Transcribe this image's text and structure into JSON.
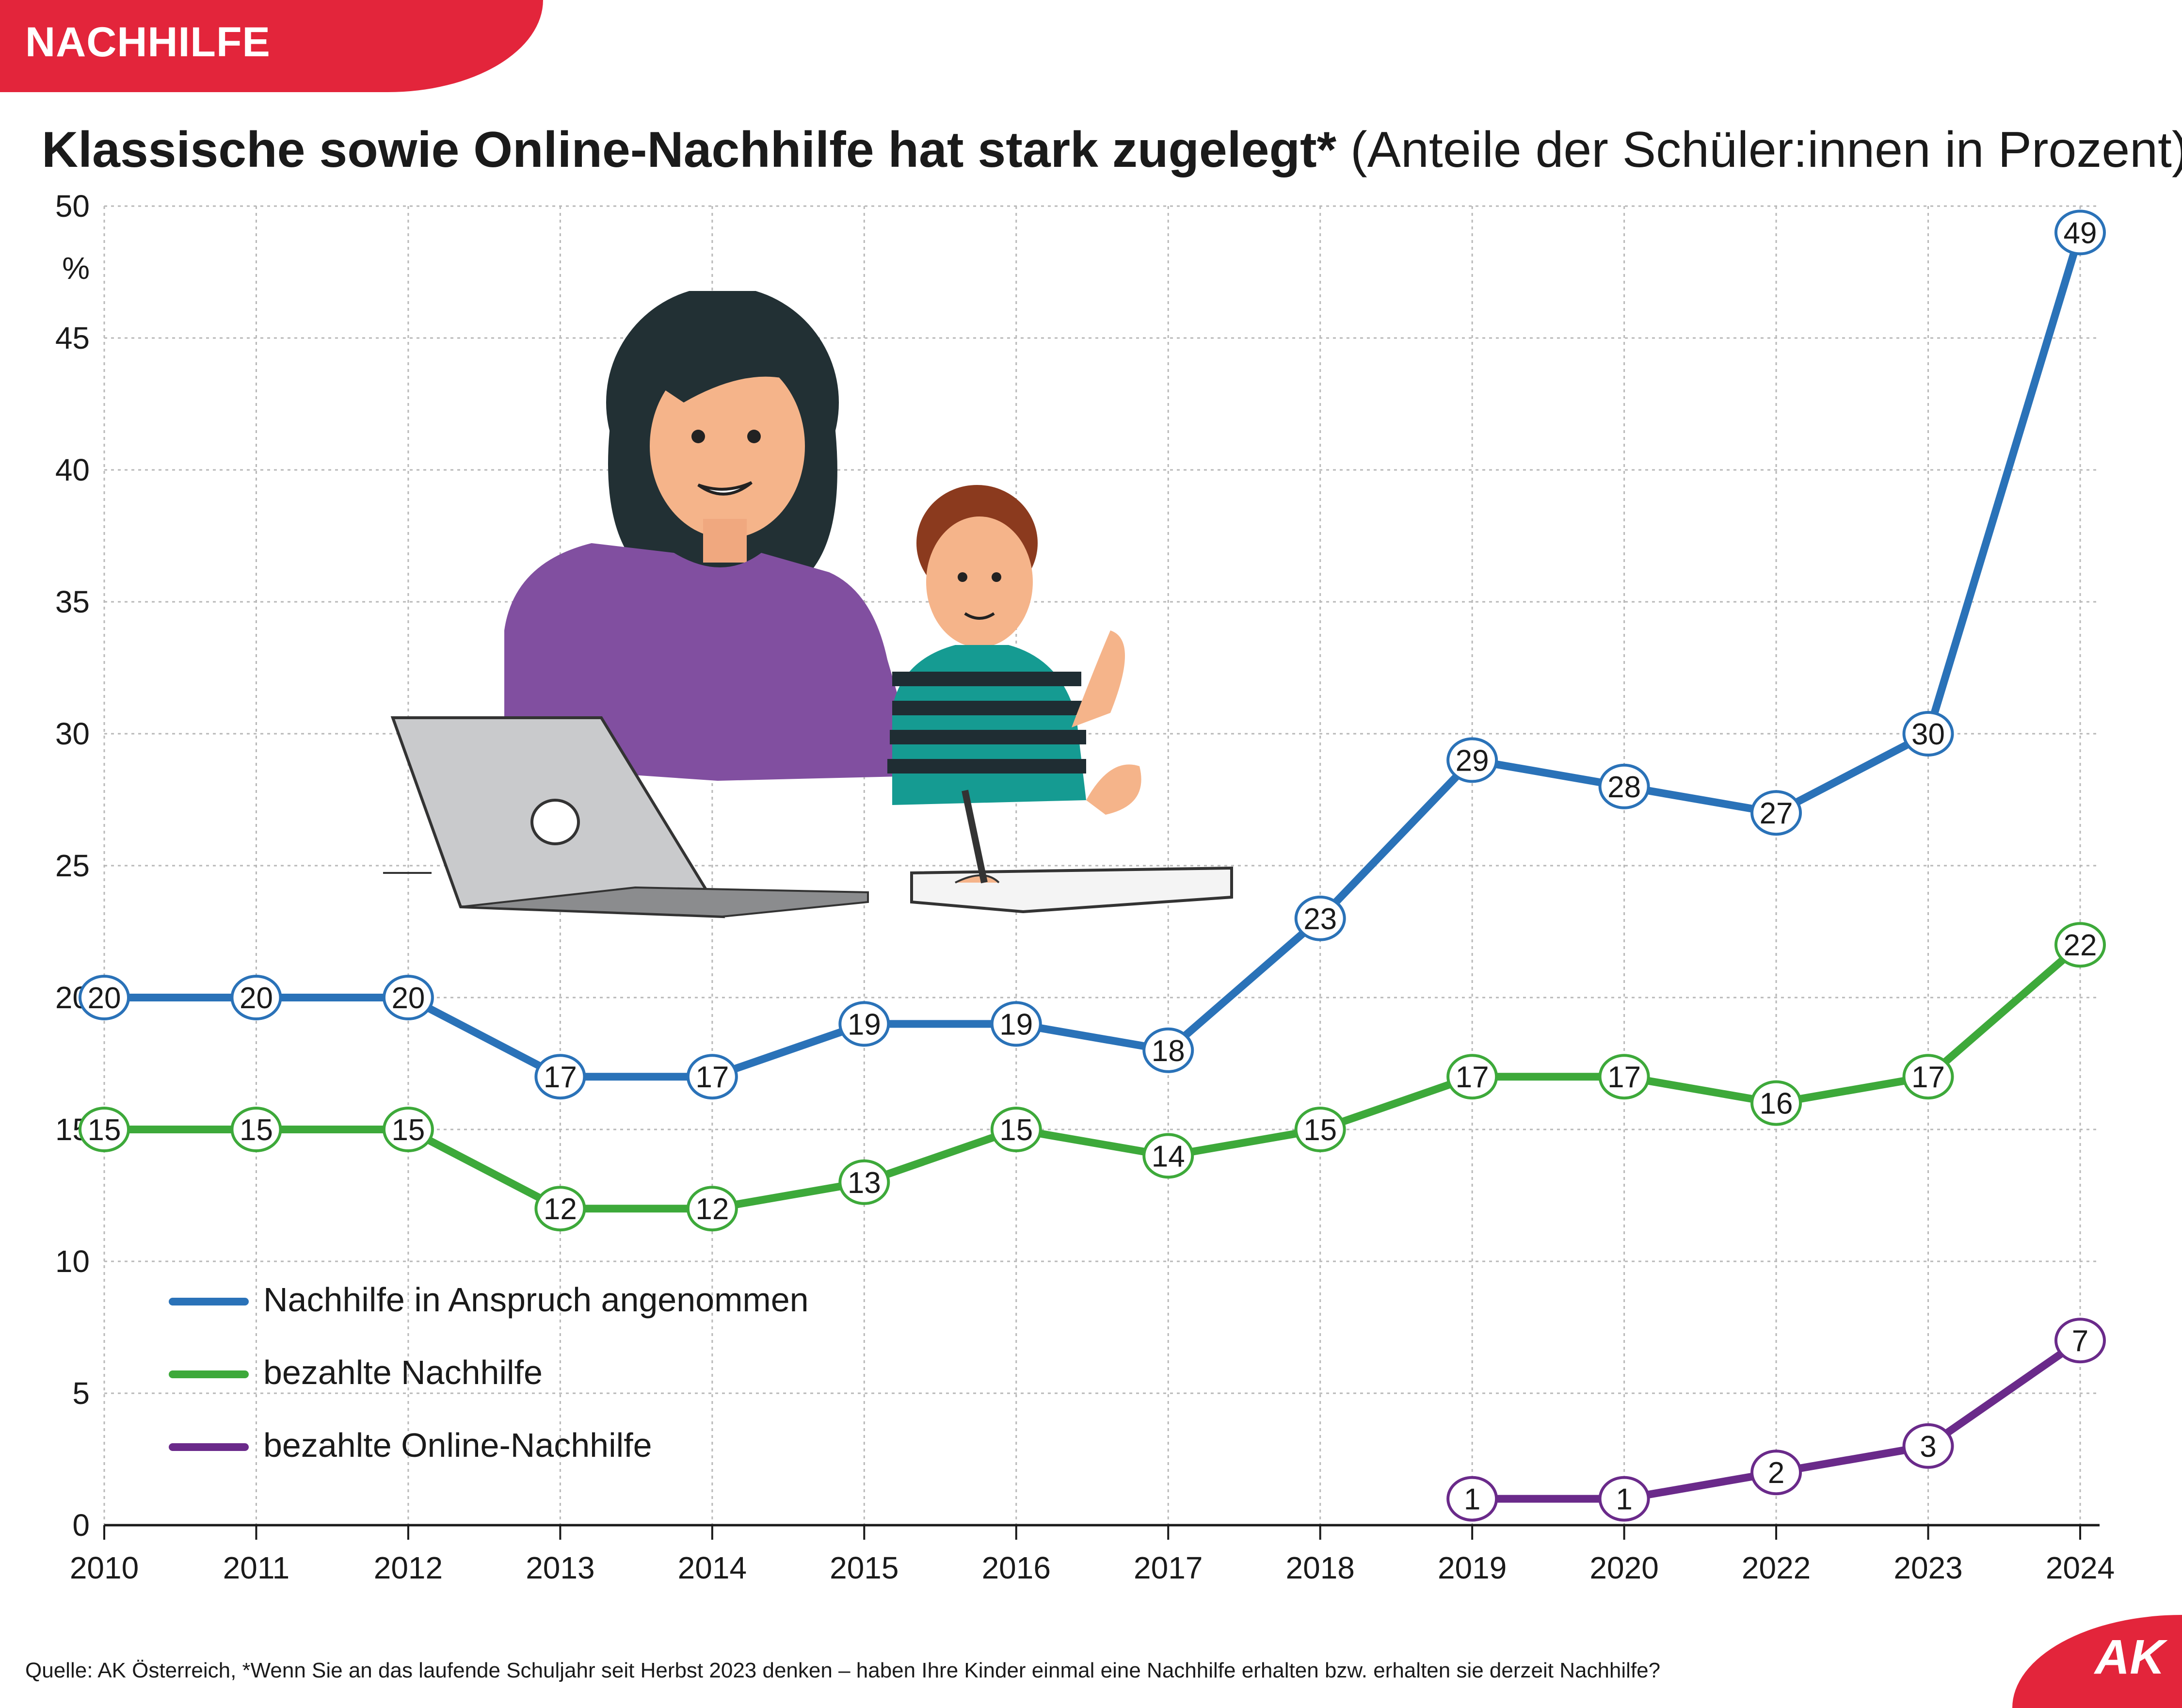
{
  "header": {
    "tag": "NACHHILFE",
    "title_main": "Klassische sowie Online-Nachhilfe hat stark zugelegt*",
    "title_sub": "(Anteile der Schüler:innen in Prozent)"
  },
  "footer": {
    "source": "Quelle: AK Österreich, *Wenn Sie an das laufende Schuljahr seit Herbst 2023 denken – haben Ihre Kinder einmal eine Nachhilfe erhalten bzw. erhalten sie derzeit Nachhilfe?"
  },
  "logo": {
    "text": "AK"
  },
  "illustration": {
    "icon": "tutoring-illustration-icon"
  },
  "colors": {
    "accent": "#e3253b",
    "blue": "#2a72b8",
    "green": "#3da93a",
    "purple": "#6a2a8a",
    "grid": "#b8b8b8"
  },
  "chart_data": {
    "type": "line",
    "title": "Klassische sowie Online-Nachhilfe hat stark zugelegt*",
    "subtitle": "(Anteile der Schüler:innen in Prozent)",
    "xlabel": "",
    "ylabel": "%",
    "categories": [
      "2010",
      "2011",
      "2012",
      "2013",
      "2014",
      "2015",
      "2016",
      "2017",
      "2018",
      "2019",
      "2020",
      "2022",
      "2023",
      "2024"
    ],
    "ylim": [
      0,
      50
    ],
    "yticks": [
      "0",
      "5",
      "10",
      "15",
      "20",
      "25",
      "30",
      "35",
      "40",
      "45",
      "50"
    ],
    "grid": true,
    "legend_position": "bottom-left",
    "series": [
      {
        "name": "Nachhilfe in Anspruch angenommen",
        "color": "#2a72b8",
        "values": [
          20,
          20,
          20,
          17,
          17,
          19,
          19,
          18,
          23,
          29,
          28,
          27,
          30,
          49
        ]
      },
      {
        "name": "bezahlte Nachhilfe",
        "color": "#3da93a",
        "values": [
          15,
          15,
          15,
          12,
          12,
          13,
          15,
          14,
          15,
          17,
          17,
          16,
          17,
          22
        ]
      },
      {
        "name": "bezahlte Online-Nachhilfe",
        "color": "#6a2a8a",
        "values": [
          null,
          null,
          null,
          null,
          null,
          null,
          null,
          null,
          null,
          1,
          1,
          2,
          3,
          7
        ]
      }
    ]
  }
}
